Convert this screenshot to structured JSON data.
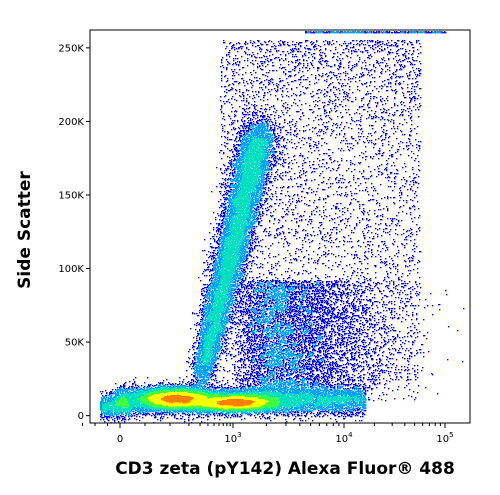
{
  "chart_data": {
    "type": "scatter",
    "plot_style": "pseudocolor density dot plot (flow cytometry)",
    "xlabel": "CD3 zeta (pY142) Alexa Fluor® 488",
    "ylabel": "Side Scatter",
    "x_scale": "biexponential (linear near 0, log above)",
    "xlim": [
      -200,
      200000
    ],
    "ylim": [
      -5000,
      262144
    ],
    "x_ticks": [
      {
        "value": 0,
        "label": "0"
      },
      {
        "value": 1000,
        "label": "10",
        "exp": "3"
      },
      {
        "value": 10000,
        "label": "10",
        "exp": "4"
      },
      {
        "value": 100000,
        "label": "10",
        "exp": "5"
      }
    ],
    "y_ticks": [
      {
        "value": 0,
        "label": "0"
      },
      {
        "value": 50000,
        "label": "50K"
      },
      {
        "value": 100000,
        "label": "100K"
      },
      {
        "value": 150000,
        "label": "150K"
      },
      {
        "value": 200000,
        "label": "200K"
      },
      {
        "value": 250000,
        "label": "250K"
      }
    ],
    "populations": [
      {
        "name": "",
        "center_x": 350,
        "center_y": 14000,
        "density": "peak"
      },
      {
        "name": "",
        "center_x": 1100,
        "center_y": 12000,
        "density": "peak"
      },
      {
        "name": "",
        "center_x": 1500,
        "center_y": 100000,
        "density": "medium",
        "note": "diagonal streak toward high side scatter"
      }
    ],
    "color_scale": [
      "#0000ff",
      "#00a0ff",
      "#00e0c0",
      "#40ff40",
      "#ffff00",
      "#ff8000",
      "#ff0000"
    ],
    "grid": false,
    "legend": "none"
  }
}
